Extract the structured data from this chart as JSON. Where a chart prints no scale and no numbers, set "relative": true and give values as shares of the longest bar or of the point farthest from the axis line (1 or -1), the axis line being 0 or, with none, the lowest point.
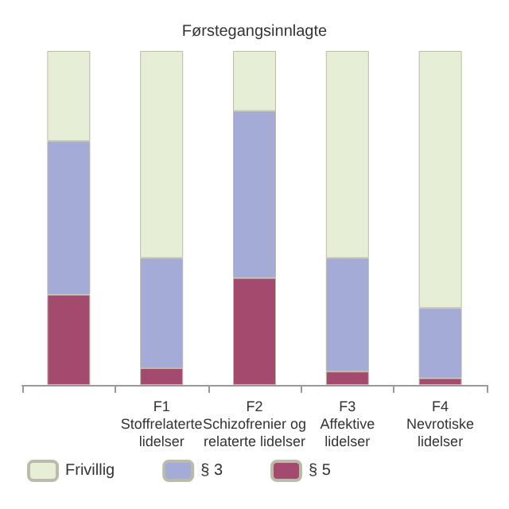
{
  "chart_data": {
    "type": "bar",
    "title": "Førstegangsinnlagte",
    "stacked": true,
    "relative": true,
    "legend": "bottom left",
    "categories": [
      null,
      "F1\nStoffrelaterte\nlidelser",
      "F2\nSchizofrenier og\nrelaterte lidelser",
      "F3\nAffektive\nlidelser",
      "F4\nNevrotiske\nlidelser"
    ],
    "series": [
      {
        "name": "§ 5",
        "color": "#a34a6e",
        "values": [
          0.27,
          0.05,
          0.32,
          0.04,
          0.02
        ]
      },
      {
        "name": "§ 3",
        "color": "#a3abd6",
        "values": [
          0.46,
          0.33,
          0.5,
          0.34,
          0.21
        ]
      },
      {
        "name": "Frivillig",
        "color": "#e6efd6",
        "values": [
          0.27,
          0.62,
          0.18,
          0.62,
          0.77
        ]
      }
    ]
  }
}
